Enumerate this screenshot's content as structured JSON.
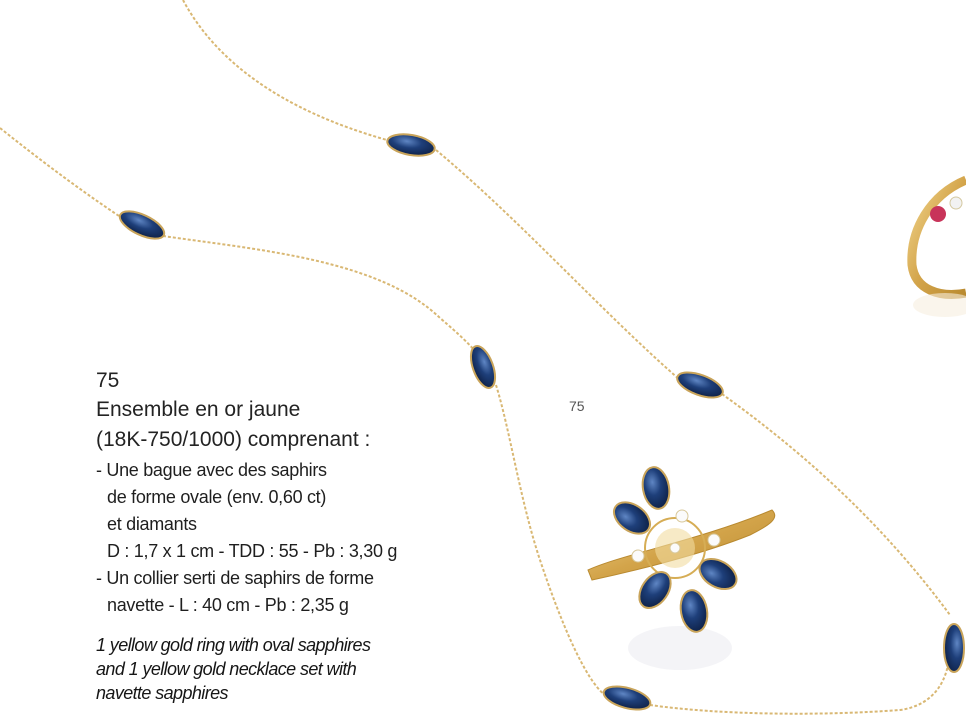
{
  "lot": {
    "number": "75",
    "photo_label": "75",
    "title_lines": [
      "Ensemble en or jaune",
      "(18K-750/1000) comprenant :"
    ],
    "items": [
      {
        "lines": [
          "- Une bague avec des saphirs",
          "de forme ovale (env. 0,60 ct)",
          "et diamants",
          "D : 1,7 x 1 cm - TDD : 55 - Pb : 3,30 g"
        ]
      },
      {
        "lines": [
          "- Un collier serti de saphirs de forme",
          "navette - L : 40 cm - Pb : 2,35 g"
        ]
      }
    ],
    "english_lines": [
      "1 yellow gold ring with oval sapphires",
      "and  1 yellow gold necklace set with",
      "navette sapphires"
    ]
  },
  "colors": {
    "gold": "#d8b46a",
    "sapphire": "#1f3d73",
    "ruby": "#c8345a"
  }
}
